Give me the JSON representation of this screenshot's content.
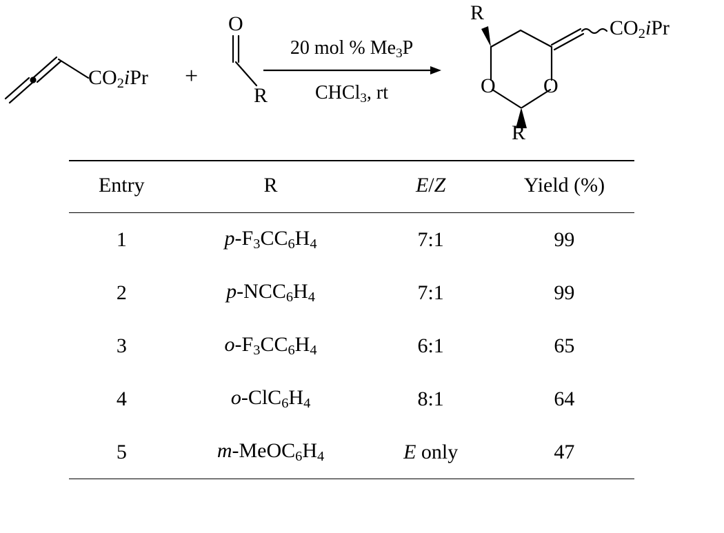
{
  "scheme": {
    "reactant1_label": "CO₂iPr",
    "plus": "+",
    "aldehyde_O": "O",
    "aldehyde_R": "R",
    "arrow_top": "20 mol % Me₃P",
    "arrow_bottom": "CHCl₃, rt",
    "product_R_top": "R",
    "product_R_bottom": "R",
    "product_O1": "O",
    "product_O2": "O",
    "product_label": "CO₂iPr",
    "stroke_color": "#000000",
    "stroke_width": 2.2
  },
  "table": {
    "columns": [
      "Entry",
      "R",
      "E/Z",
      "Yield (%)"
    ],
    "rows": [
      {
        "entry": "1",
        "r_prefix": "p-",
        "r_formula": "F₃CC₆H₄",
        "ez": "7:1",
        "yield": "99"
      },
      {
        "entry": "2",
        "r_prefix": "p-",
        "r_formula": "NCC₆H₄",
        "ez": "7:1",
        "yield": "99"
      },
      {
        "entry": "3",
        "r_prefix": "o-",
        "r_formula": "F₃CC₆H₄",
        "ez": "6:1",
        "yield": "65"
      },
      {
        "entry": "4",
        "r_prefix": "o-",
        "r_formula": "ClC₆H₄",
        "ez": "8:1",
        "yield": "64"
      },
      {
        "entry": "5",
        "r_prefix": "m-",
        "r_formula": "MeOC₆H₄",
        "ez": "E only",
        "ez_italic_first": true,
        "yield": "47"
      }
    ],
    "header_italic_col3": true,
    "font_size": 30,
    "rule_color": "#000000"
  }
}
